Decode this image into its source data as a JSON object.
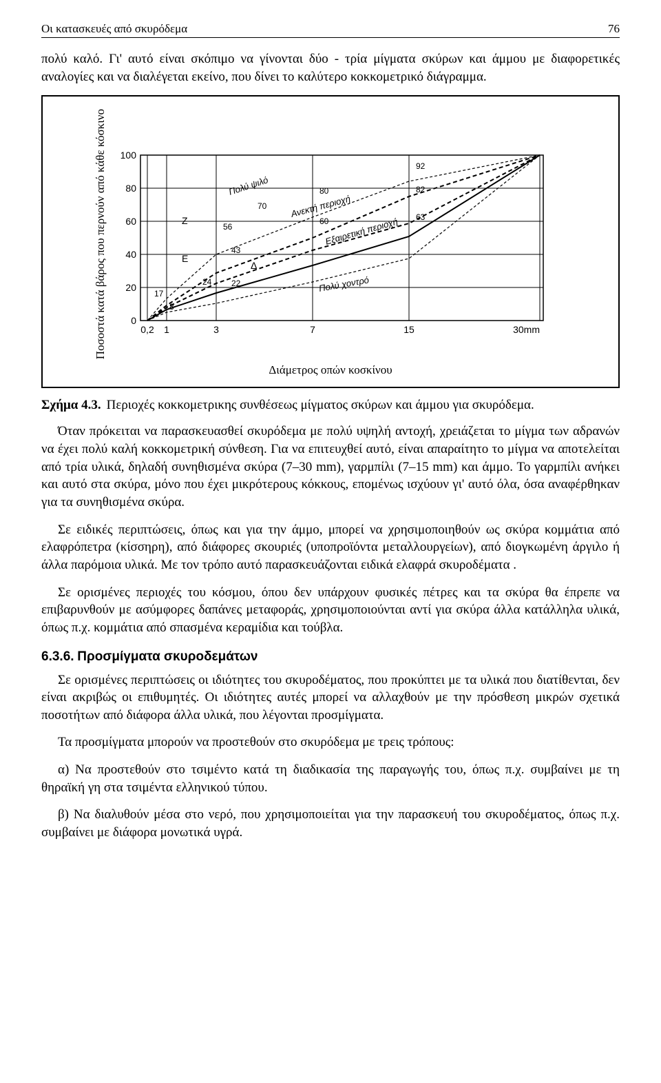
{
  "header": {
    "title": "Οι κατασκευές από σκυρόδεμα",
    "page_number": "76"
  },
  "p1": "πολύ καλό. Γι' αυτό είναι σκόπιμο να γίνονται δύο - τρία μίγματα σκύρων και άμμου με διαφορετικές αναλογίες και να διαλέγεται εκείνο, που δίνει το καλύτερο κοκκομετρικό διάγραμμα.",
  "chart": {
    "yaxis_label": "Ποσοστά κατά βάρος που περνούν από κάθε κόσκινο",
    "xaxis_label": "Διάμετρος οπών κοσκίνου",
    "ylim": [
      0,
      100
    ],
    "xticks_text": [
      "0,2",
      "1",
      "3",
      "7",
      "15",
      "30mm"
    ],
    "xticks_pos": [
      50,
      78,
      150,
      290,
      430,
      620
    ],
    "yticks": [
      0,
      20,
      40,
      60,
      80,
      100
    ],
    "curves": {
      "Z": {
        "label": "Z",
        "points": [
          [
            50,
            280
          ],
          [
            78,
            258
          ],
          [
            150,
            211
          ],
          [
            290,
            160
          ],
          [
            430,
            100
          ],
          [
            620,
            40
          ]
        ]
      },
      "E": {
        "label": "E",
        "points": [
          [
            50,
            280
          ],
          [
            78,
            261
          ],
          [
            150,
            226
          ],
          [
            290,
            178
          ],
          [
            430,
            139
          ],
          [
            620,
            40
          ]
        ]
      },
      "D": {
        "label": "Δ",
        "points": [
          [
            50,
            280
          ],
          [
            78,
            264
          ],
          [
            150,
            240
          ],
          [
            290,
            200
          ],
          [
            430,
            158
          ],
          [
            620,
            40
          ]
        ]
      }
    },
    "annotations": {
      "92": "92",
      "82": "82",
      "80": "80",
      "70": "70",
      "63": "63",
      "60": "60",
      "56": "56",
      "43": "43",
      "24": "24",
      "22": "22",
      "17": "17",
      "8": "8"
    },
    "region_labels": {
      "top": "Πολύ ψιλό",
      "upper_mid": "Ανεκτή περιοχή",
      "mid": "Εξαιρετική περιοχή",
      "bottom": "Πολύ χοντρό"
    },
    "grid_color": "#000000",
    "background_color": "#ffffff",
    "tick_fontsize": 14,
    "annot_fontsize": 12
  },
  "caption": {
    "label": "Σχήμα 4.3.",
    "text": "Περιοχές κοκκομετρικης συνθέσεως μίγματος σκύρων και άμμου για σκυρόδεμα."
  },
  "p2": "Όταν πρόκειται να παρασκευασθεί σκυρόδεμα με πολύ υψηλή αντοχή, χρειάζεται το μίγμα των αδρανών να έχει πολύ καλή κοκκομετρική σύνθεση. Για να επιτευχθεί αυτό, είναι απαραίτητο το μίγμα να αποτελείται από τρία υλικά, δηλαδή συνηθισμένα σκύρα (7–30 mm), γαρμπίλι (7–15 mm) και άμμο. Το γαρμπίλι ανήκει και αυτό στα σκύρα, μόνο που έχει μικρότερους κόκκους, επομένως ισχύουν γι' αυτό όλα, όσα αναφέρθηκαν για τα συνηθισμένα σκύρα.",
  "p3": "Σε ειδικές περιπτώσεις, όπως και για την άμμο, μπορεί να χρησιμοποιηθούν ως σκύρα κομμάτια από ελαφρόπετρα (κίσσηρη), από διάφορες σκουριές (υποπροϊόντα μεταλλουργείων), από διογκωμένη άργιλο ή άλλα παρόμοια υλικά. Με τον τρόπο αυτό παρασκευάζονται ειδικά ελαφρά σκυροδέματα .",
  "p4": "Σε ορισμένες περιοχές του κόσμου, όπου δεν υπάρχουν φυσικές πέτρες και τα σκύρα θα έπρεπε να επιβαρυνθούν με ασύμφορες δαπάνες μεταφοράς, χρησιμοποιούνται αντί για σκύρα άλλα κατάλληλα υλικά, όπως π.χ. κομμάτια από σπασμένα κεραμίδια και τούβλα.",
  "section": {
    "number": "6.3.6.",
    "title": "Προσμίγματα σκυροδεμάτων"
  },
  "p5": "Σε ορισμένες περιπτώσεις οι ιδιότητες του σκυροδέματος, που προκύπτει με τα υλικά που διατίθενται, δεν είναι ακριβώς οι επιθυμητές. Οι ιδιότητες αυτές μπορεί να αλλαχθούν με την πρόσθεση μικρών σχετικά ποσοτήτων από διάφορα άλλα υλικά, που λέγονται προσμίγματα.",
  "p6": "Τα προσμίγματα μπορούν να προστεθούν στο σκυρόδεμα με τρεις τρόπους:",
  "p7": "α) Να προστεθούν στο τσιμέντο κατά τη διαδικασία της παραγωγής του, όπως π.χ. συμβαίνει με τη θηραϊκή γη στα τσιμέντα ελληνικού τύπου.",
  "p8": "β) Να διαλυθούν μέσα στο νερό, που χρησιμοποιείται για την παρασκευή του σκυροδέματος, όπως π.χ. συμβαίνει με διάφορα μονωτικά υγρά."
}
